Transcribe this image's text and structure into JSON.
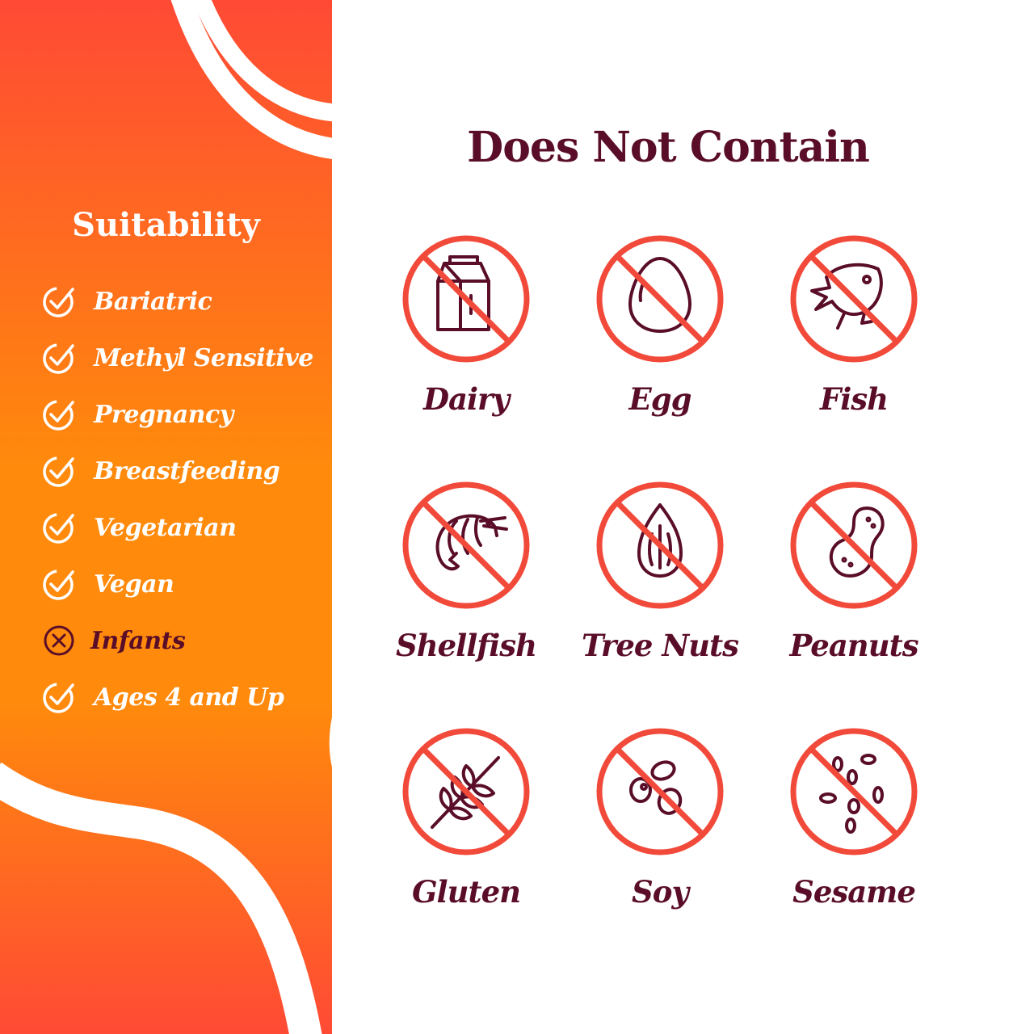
{
  "colors": {
    "orange": "#ff8c0a",
    "red": "#ff4a35",
    "maroon": "#5a0d28",
    "prohibit": "#f24a3a"
  },
  "suitability": {
    "title": "Suitability",
    "items": [
      {
        "label": "Bariatric",
        "status": "yes",
        "icon": "check-circle-icon"
      },
      {
        "label": "Methyl Sensitive",
        "status": "yes",
        "icon": "check-circle-icon"
      },
      {
        "label": "Pregnancy",
        "status": "yes",
        "icon": "check-circle-icon"
      },
      {
        "label": "Breastfeeding",
        "status": "yes",
        "icon": "check-circle-icon"
      },
      {
        "label": "Vegetarian",
        "status": "yes",
        "icon": "check-circle-icon"
      },
      {
        "label": "Vegan",
        "status": "yes",
        "icon": "check-circle-icon"
      },
      {
        "label": "Infants",
        "status": "no",
        "icon": "x-circle-icon"
      },
      {
        "label": "Ages 4 and Up",
        "status": "yes",
        "icon": "check-circle-icon"
      }
    ]
  },
  "does_not_contain": {
    "title": "Does Not Contain",
    "items": [
      {
        "label": "Dairy",
        "icon": "milk-carton-icon"
      },
      {
        "label": "Egg",
        "icon": "egg-icon"
      },
      {
        "label": "Fish",
        "icon": "fish-icon"
      },
      {
        "label": "Shellfish",
        "icon": "shrimp-icon"
      },
      {
        "label": "Tree Nuts",
        "icon": "almond-icon"
      },
      {
        "label": "Peanuts",
        "icon": "peanut-icon"
      },
      {
        "label": "Gluten",
        "icon": "wheat-icon"
      },
      {
        "label": "Soy",
        "icon": "soybean-icon"
      },
      {
        "label": "Sesame",
        "icon": "sesame-seeds-icon"
      }
    ]
  }
}
